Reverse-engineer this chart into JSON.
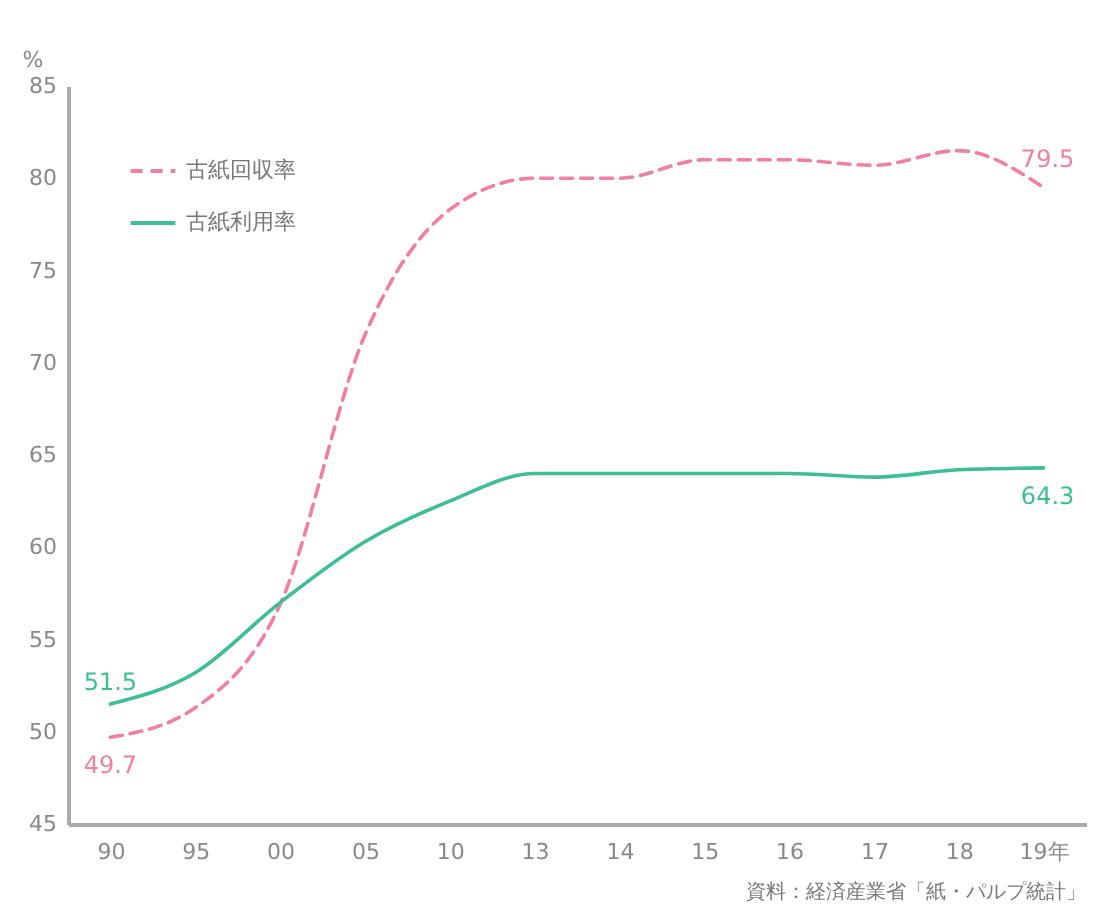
{
  "chart_data": {
    "type": "line",
    "ylabel": "%",
    "categories": [
      "90",
      "95",
      "00",
      "05",
      "10",
      "13",
      "14",
      "15",
      "16",
      "17",
      "18",
      "19年"
    ],
    "series": [
      {
        "name": "古紙回収率",
        "color": "#f0809f",
        "line_style": "dashed",
        "values": [
          49.7,
          51.3,
          56.9,
          71.5,
          78.3,
          80.0,
          80.0,
          81.0,
          81.0,
          80.7,
          81.5,
          79.5
        ],
        "value_labels": [
          "49.7",
          null,
          null,
          null,
          null,
          null,
          null,
          null,
          null,
          null,
          null,
          "79.5"
        ]
      },
      {
        "name": "古紙利用率",
        "color": "#3dbd98",
        "line_style": "solid",
        "values": [
          51.5,
          53.2,
          57.0,
          60.3,
          62.5,
          64.0,
          64.0,
          64.0,
          64.0,
          63.8,
          64.2,
          64.3
        ],
        "value_labels": [
          "51.5",
          null,
          null,
          null,
          null,
          null,
          null,
          null,
          null,
          null,
          null,
          "64.3"
        ]
      }
    ],
    "ylim": [
      45,
      85
    ],
    "yticks": [
      45,
      50,
      55,
      60,
      65,
      70,
      75,
      80,
      85
    ],
    "grid": false,
    "legend": "top left",
    "annotations": [
      "資料：経済産業省「紙・パルプ統計」"
    ]
  }
}
